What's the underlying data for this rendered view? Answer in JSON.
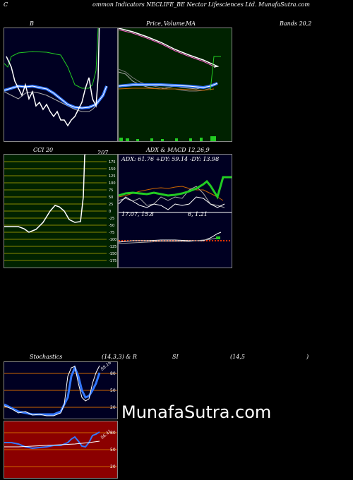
{
  "header": {
    "left_c": "C",
    "title": "ommon Indicators NECLIFE_BE Nectar Lifesciences Ltd. MunafaSutra.com"
  },
  "labels": {
    "bands_b": "B",
    "price_label": "Price,",
    "volume_label": "Volume,",
    "ma_label": "MA",
    "bands_right": "Bands 20,2",
    "cci_label": "CCI 20",
    "cci_value": "207",
    "adx_macd_label": "ADX  & MACD 12,26,9",
    "adx_readout": "ADX: 61.76  +DY: 59.14  -DY: 13.98",
    "macd_left": "17.07,  15.8",
    "macd_right": "6,  1.21",
    "stoch_label": "Stochastics",
    "stoch_params": "(14,3,3) & R",
    "rsi_label": "SI",
    "rsi_params": "(14,5",
    "rsi_close": ")",
    "stoch_value": "88.16",
    "rsi_value": "56.41"
  },
  "watermark": "MunafaSutra.com",
  "colors": {
    "panel_dark": "#000022",
    "panel_green": "#002200",
    "panel_red": "#8b0000",
    "accent_blue": "#3377ff",
    "accent_green": "#22cc22",
    "accent_orange": "#cc6600"
  },
  "chart_data": [
    {
      "type": "line",
      "panel": "bollinger",
      "series": [
        {
          "values": [
            92,
            94,
            80,
            65,
            62,
            60,
            62,
            64,
            66,
            70,
            78,
            88,
            95,
            100,
            108,
            5,
            -20,
            -20
          ]
        },
        {
          "values": [
            25,
            50,
            55,
            55,
            54,
            52,
            50,
            50,
            52,
            56,
            60,
            62,
            60,
            55,
            50,
            -10,
            -20,
            -20
          ]
        },
        {
          "values": [
            122,
            118,
            116,
            118,
            118,
            120,
            125,
            135,
            145,
            150,
            150,
            145,
            130
          ]
        },
        {
          "values": [
            150,
            150,
            150,
            150,
            152,
            152,
            152,
            152,
            152,
            152,
            152,
            155,
            160,
            168
          ]
        }
      ]
    },
    {
      "type": "line",
      "panel": "price_volume",
      "series": [
        {
          "values": [
            5,
            8,
            11,
            14,
            18,
            22,
            27,
            32,
            37,
            42,
            47,
            52,
            57
          ]
        },
        {
          "values": [
            78,
            77,
            76,
            77,
            77,
            78,
            79,
            80,
            78,
            76,
            72
          ]
        }
      ],
      "volume": [
        6,
        4,
        4,
        3,
        5,
        3,
        4,
        3,
        5,
        4,
        6,
        5,
        8
      ]
    },
    {
      "type": "line",
      "panel": "cci",
      "levels": [
        175,
        150,
        125,
        100,
        75,
        50,
        25,
        0,
        -25,
        -50,
        -75,
        -100,
        -125,
        -150,
        -175
      ],
      "values": [
        -10,
        -10,
        -12,
        -24,
        -20,
        -10,
        10,
        55,
        80,
        60,
        -20,
        -20,
        215,
        215,
        215
      ],
      "last": 207
    },
    {
      "type": "line",
      "panel": "adx_macd",
      "series": [
        {
          "values": [
            30,
            32,
            33,
            35,
            36,
            32,
            38,
            35,
            30,
            35,
            45,
            48,
            40,
            46,
            62,
            62
          ]
        },
        {
          "values": [
            40,
            38,
            36,
            40,
            42,
            45,
            44,
            40,
            35,
            38,
            40,
            42,
            45,
            44
          ]
        }
      ]
    },
    {
      "type": "line",
      "panel": "stochastics",
      "levels": [
        80,
        50,
        20
      ],
      "values": [
        20,
        15,
        10,
        5,
        5,
        8,
        5,
        2,
        2,
        5,
        10,
        15,
        20,
        85,
        90,
        40,
        30,
        88
      ],
      "last": 88.16
    },
    {
      "type": "line",
      "panel": "rsi",
      "levels": [
        80,
        50,
        20
      ],
      "values": [
        46,
        46,
        44,
        42,
        40,
        40,
        41,
        44,
        45,
        46,
        48,
        50,
        54,
        50,
        40,
        48,
        56,
        56
      ],
      "last": 56.41
    }
  ]
}
